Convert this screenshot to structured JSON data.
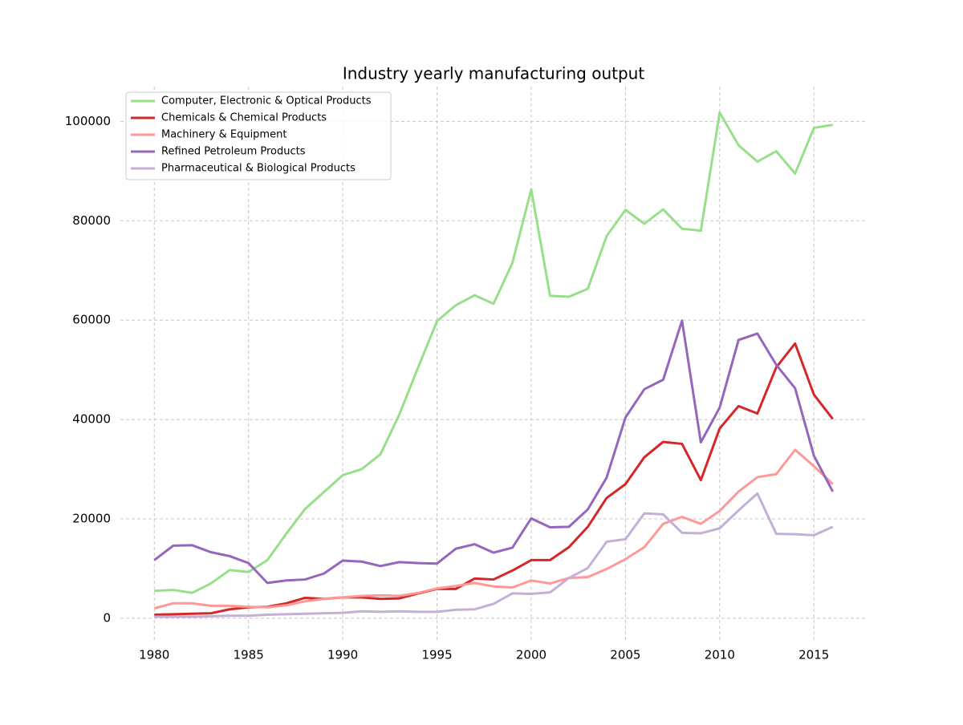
{
  "chart_data": {
    "type": "line",
    "title": "Industry yearly manufacturing output",
    "x": [
      1980,
      1981,
      1982,
      1983,
      1984,
      1985,
      1986,
      1987,
      1988,
      1989,
      1990,
      1991,
      1992,
      1993,
      1994,
      1995,
      1996,
      1997,
      1998,
      1999,
      2000,
      2001,
      2002,
      2003,
      2004,
      2005,
      2006,
      2007,
      2008,
      2009,
      2010,
      2011,
      2012,
      2013,
      2014,
      2015,
      2016
    ],
    "series": [
      {
        "name": "Computer, Electronic & Optical Products",
        "color": "#98df8a",
        "values": [
          5500,
          5700,
          5100,
          7000,
          9700,
          9300,
          11700,
          17000,
          22000,
          25400,
          28800,
          30000,
          33000,
          41000,
          50500,
          59800,
          63000,
          65000,
          63300,
          71500,
          86300,
          64900,
          64700,
          66300,
          76900,
          82200,
          79400,
          82300,
          78400,
          78000,
          101800,
          95200,
          91900,
          94000,
          89500,
          98700,
          99300
        ]
      },
      {
        "name": "Chemicals & Chemical Products",
        "color": "#d62728",
        "values": [
          700,
          800,
          900,
          1000,
          1800,
          2200,
          2300,
          3000,
          4100,
          3900,
          4200,
          4200,
          3900,
          4000,
          5000,
          5900,
          5900,
          8000,
          7800,
          9600,
          11700,
          11700,
          14300,
          18400,
          24200,
          27000,
          32400,
          35500,
          35100,
          27800,
          38200,
          42700,
          41200,
          50500,
          55300,
          45000,
          40100
        ]
      },
      {
        "name": "Machinery & Equipment",
        "color": "#ff9896",
        "values": [
          2000,
          3000,
          3000,
          2500,
          2500,
          2300,
          2200,
          2600,
          3400,
          3900,
          4200,
          4500,
          4600,
          4500,
          5100,
          6000,
          6500,
          7100,
          6400,
          6200,
          7600,
          7000,
          8100,
          8300,
          9900,
          11900,
          14300,
          19000,
          20400,
          19000,
          21600,
          25500,
          28400,
          29000,
          33900,
          30600,
          27000
        ]
      },
      {
        "name": "Refined Petroleum Products",
        "color": "#9467bd",
        "values": [
          11700,
          14600,
          14700,
          13300,
          12500,
          11100,
          7100,
          7600,
          7800,
          9000,
          11600,
          11400,
          10500,
          11300,
          11100,
          11000,
          14000,
          14900,
          13200,
          14200,
          20100,
          18300,
          18400,
          21900,
          28300,
          40400,
          46100,
          48000,
          59900,
          35400,
          42400,
          56000,
          57300,
          51000,
          46300,
          32700,
          25500
        ]
      },
      {
        "name": "Pharmaceutical & Biological Products",
        "color": "#c5b0d5",
        "values": [
          300,
          300,
          300,
          400,
          500,
          500,
          700,
          800,
          900,
          1000,
          1100,
          1400,
          1300,
          1400,
          1300,
          1300,
          1700,
          1800,
          2900,
          5000,
          4900,
          5200,
          8100,
          10100,
          15400,
          15900,
          21100,
          20900,
          17200,
          17100,
          18100,
          21700,
          25100,
          17000,
          16900,
          16700,
          18400
        ]
      }
    ],
    "xlim": [
      1978.2,
      2017.8
    ],
    "ylim": [
      -4700,
      107000
    ],
    "xticks": [
      1980,
      1985,
      1990,
      1995,
      2000,
      2005,
      2010,
      2015
    ],
    "yticks": [
      0,
      20000,
      40000,
      60000,
      80000,
      100000
    ],
    "grid": true,
    "legend": "upper left"
  }
}
